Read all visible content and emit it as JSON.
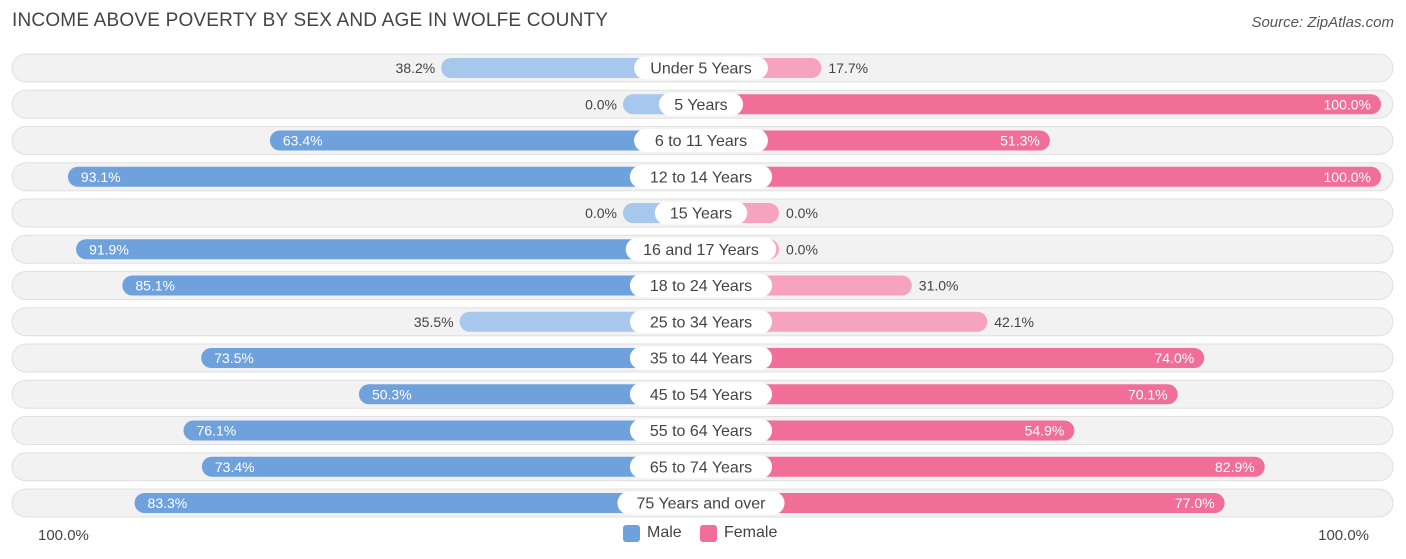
{
  "title": "INCOME ABOVE POVERTY BY SEX AND AGE IN WOLFE COUNTY",
  "source": "Source: ZipAtlas.com",
  "axis": {
    "left_label": "100.0%",
    "right_label": "100.0%"
  },
  "legend": [
    {
      "key": "male",
      "label": "Male",
      "color": "#6fa1dc"
    },
    {
      "key": "female",
      "label": "Female",
      "color": "#f06e98"
    }
  ],
  "colors": {
    "male_strong": "#6fa1dc",
    "male_light": "#a7c7ec",
    "female_strong": "#f06e98",
    "female_light": "#f6a3bf",
    "row_bg": "#f2f2f2",
    "row_border": "#e0e0e0"
  },
  "chart_data": {
    "type": "bar",
    "orientation": "horizontal-diverging",
    "title": "INCOME ABOVE POVERTY BY SEX AND AGE IN WOLFE COUNTY",
    "xlim": [
      -100,
      100
    ],
    "categories": [
      "Under 5 Years",
      "5 Years",
      "6 to 11 Years",
      "12 to 14 Years",
      "15 Years",
      "16 and 17 Years",
      "18 to 24 Years",
      "25 to 34 Years",
      "35 to 44 Years",
      "45 to 54 Years",
      "55 to 64 Years",
      "65 to 74 Years",
      "75 Years and over"
    ],
    "series": [
      {
        "name": "Male",
        "values": [
          38.2,
          0.0,
          63.4,
          93.1,
          0.0,
          91.9,
          85.1,
          35.5,
          73.5,
          50.3,
          76.1,
          73.4,
          83.3
        ],
        "labels": [
          "38.2%",
          "0.0%",
          "63.4%",
          "93.1%",
          "0.0%",
          "91.9%",
          "85.1%",
          "35.5%",
          "73.5%",
          "50.3%",
          "76.1%",
          "73.4%",
          "83.3%"
        ]
      },
      {
        "name": "Female",
        "values": [
          17.7,
          100.0,
          51.3,
          100.0,
          0.0,
          0.0,
          31.0,
          42.1,
          74.0,
          70.1,
          54.9,
          82.9,
          77.0
        ],
        "labels": [
          "17.7%",
          "100.0%",
          "51.3%",
          "100.0%",
          "0.0%",
          "0.0%",
          "31.0%",
          "42.1%",
          "74.0%",
          "70.1%",
          "54.9%",
          "82.9%",
          "77.0%"
        ]
      }
    ]
  }
}
